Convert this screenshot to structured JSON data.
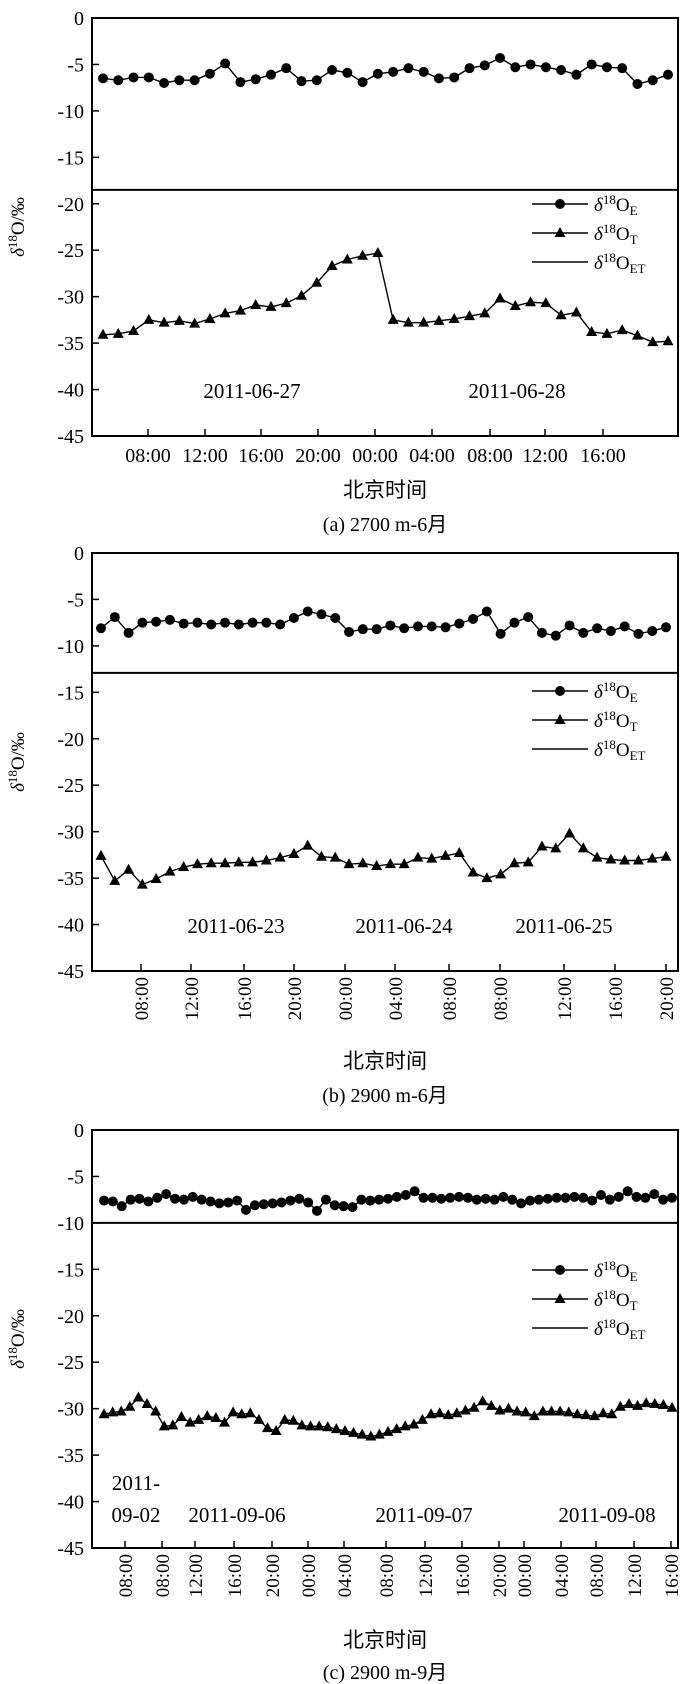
{
  "chart_data": [
    {
      "panel": "a",
      "type": "line",
      "caption": "(a) 2700 m-6月",
      "xlabel": "北京时间",
      "ylabel": "δ18O/‰",
      "ylim": [
        -45,
        0
      ],
      "y_ticks": [
        0,
        -5,
        -10,
        -15,
        -20,
        -25,
        -30,
        -35,
        -40,
        -45
      ],
      "x_ticks": [
        "08:00",
        "12:00",
        "16:00",
        "20:00",
        "00:00",
        "04:00",
        "08:00",
        "12:00",
        "16:00"
      ],
      "x_ticks_rotated": false,
      "date_labels": [
        "2011-06-27",
        "2011-06-28"
      ],
      "legend": {
        "position": "right-middle",
        "entries": [
          {
            "base": "δ",
            "sup": "18",
            "main": "O",
            "sub": "E"
          },
          {
            "base": "δ",
            "sup": "18",
            "main": "O",
            "sub": "T"
          },
          {
            "base": "δ",
            "sup": "18",
            "main": "O",
            "sub": "ET"
          }
        ]
      },
      "series": [
        {
          "marker": "circle",
          "values": [
            -6.5,
            -6.7,
            -6.4,
            -6.4,
            -7.0,
            -6.7,
            -6.7,
            -6.0,
            -4.9,
            -6.9,
            -6.6,
            -6.1,
            -5.4,
            -6.8,
            -6.7,
            -5.6,
            -5.9,
            -6.9,
            -6.0,
            -5.8,
            -5.4,
            -5.8,
            -6.5,
            -6.4,
            -5.4,
            -5.1,
            -4.3,
            -5.3,
            -5.0,
            -5.3,
            -5.6,
            -6.1,
            -5.0,
            -5.3,
            -5.4,
            -7.1,
            -6.7,
            -6.1
          ]
        },
        {
          "marker": "triangle",
          "values": [
            -34.1,
            -34.0,
            -33.7,
            -32.5,
            -32.8,
            -32.6,
            -32.9,
            -32.4,
            -31.8,
            -31.5,
            -30.9,
            -31.1,
            -30.7,
            -29.9,
            -28.5,
            -26.7,
            -26.0,
            -25.6,
            -25.3,
            -32.5,
            -32.8,
            -32.8,
            -32.6,
            -32.4,
            -32.1,
            -31.8,
            -30.2,
            -31.0,
            -30.6,
            -30.7,
            -32.0,
            -31.7,
            -33.8,
            -34.0,
            -33.6,
            -34.2,
            -34.9,
            -34.8
          ]
        },
        {
          "marker": "none",
          "values": [
            -18.5,
            -18.5
          ]
        }
      ]
    },
    {
      "panel": "b",
      "type": "line",
      "caption": "(b) 2900 m-6月",
      "xlabel": "北京时间",
      "ylabel": "δ18O/‰",
      "ylim": [
        -45,
        0
      ],
      "y_ticks": [
        0,
        -5,
        -10,
        -15,
        -20,
        -25,
        -30,
        -35,
        -40,
        -45
      ],
      "x_ticks": [
        "08:00",
        "12:00",
        "16:00",
        "20:00",
        "00:00",
        "04:00",
        "08:00",
        "08:00",
        "12:00",
        "16:00",
        "20:00"
      ],
      "x_ticks_rotated": true,
      "date_labels": [
        "2011-06-23",
        "2011-06-24",
        "2011-06-25"
      ],
      "legend": {
        "position": "right-middle",
        "entries": [
          {
            "base": "δ",
            "sup": "18",
            "main": "O",
            "sub": "E"
          },
          {
            "base": "δ",
            "sup": "18",
            "main": "O",
            "sub": "T"
          },
          {
            "base": "δ",
            "sup": "18",
            "main": "O",
            "sub": "ET"
          }
        ]
      },
      "series": [
        {
          "marker": "circle",
          "values": [
            -8.1,
            -6.9,
            -8.6,
            -7.5,
            -7.4,
            -7.2,
            -7.6,
            -7.5,
            -7.7,
            -7.5,
            -7.7,
            -7.5,
            -7.5,
            -7.7,
            -7.0,
            -6.3,
            -6.6,
            -7.0,
            -8.5,
            -8.2,
            -8.2,
            -7.8,
            -8.1,
            -7.9,
            -7.9,
            -8.0,
            -7.6,
            -7.1,
            -6.3,
            -8.7,
            -7.5,
            -6.9,
            -8.6,
            -8.9,
            -7.8,
            -8.6,
            -8.1,
            -8.4,
            -7.9,
            -8.7,
            -8.4,
            -8.0
          ]
        },
        {
          "marker": "triangle",
          "values": [
            -32.6,
            -35.3,
            -34.1,
            -35.7,
            -35.1,
            -34.3,
            -33.8,
            -33.5,
            -33.4,
            -33.4,
            -33.3,
            -33.3,
            -33.1,
            -32.8,
            -32.4,
            -31.5,
            -32.7,
            -32.8,
            -33.5,
            -33.4,
            -33.7,
            -33.5,
            -33.5,
            -32.8,
            -32.9,
            -32.6,
            -32.3,
            -34.4,
            -35.0,
            -34.6,
            -33.4,
            -33.3,
            -31.6,
            -31.8,
            -30.2,
            -31.8,
            -32.8,
            -33.0,
            -33.1,
            -33.1,
            -32.9,
            -32.7
          ]
        },
        {
          "marker": "none",
          "values": [
            -12.9,
            -12.9
          ]
        }
      ]
    },
    {
      "panel": "c",
      "type": "line",
      "caption": "(c) 2900 m-9月",
      "xlabel": "北京时间",
      "ylabel": "δ18O/‰",
      "ylim": [
        -45,
        0
      ],
      "y_ticks": [
        0,
        -5,
        -10,
        -15,
        -20,
        -25,
        -30,
        -35,
        -40,
        -45
      ],
      "x_ticks": [
        "08:00",
        "08:00",
        "12:00",
        "16:00",
        "20:00",
        "00:00",
        "04:00",
        "08:00",
        "12:00",
        "16:00",
        "20:00",
        "00:00",
        "04:00",
        "08:00",
        "12:00",
        "16:00"
      ],
      "x_ticks_rotated": true,
      "date_labels": [
        "2011-",
        "09-02",
        "2011-09-06",
        "2011-09-07",
        "2011-09-08"
      ],
      "legend": {
        "position": "right-middle",
        "entries": [
          {
            "base": "δ",
            "sup": "18",
            "main": "O",
            "sub": "E"
          },
          {
            "base": "δ",
            "sup": "18",
            "main": "O",
            "sub": "T"
          },
          {
            "base": "δ",
            "sup": "18",
            "main": "O",
            "sub": "ET"
          }
        ]
      },
      "series": [
        {
          "marker": "circle",
          "values": [
            -7.6,
            -7.7,
            -8.2,
            -7.5,
            -7.4,
            -7.7,
            -7.3,
            -6.9,
            -7.4,
            -7.5,
            -7.2,
            -7.5,
            -7.7,
            -7.9,
            -7.8,
            -7.6,
            -8.6,
            -8.1,
            -8.0,
            -7.9,
            -7.8,
            -7.6,
            -7.4,
            -7.8,
            -8.7,
            -7.5,
            -8.1,
            -8.2,
            -8.3,
            -7.5,
            -7.6,
            -7.5,
            -7.4,
            -7.2,
            -7.0,
            -6.6,
            -7.3,
            -7.3,
            -7.4,
            -7.3,
            -7.2,
            -7.3,
            -7.5,
            -7.4,
            -7.5,
            -7.2,
            -7.5,
            -7.9,
            -7.6,
            -7.5,
            -7.4,
            -7.3,
            -7.3,
            -7.2,
            -7.3,
            -7.6,
            -7.0,
            -7.5,
            -7.2,
            -6.6,
            -7.2,
            -7.3,
            -6.9,
            -7.5,
            -7.3
          ]
        },
        {
          "marker": "triangle",
          "values": [
            -30.6,
            -30.4,
            -30.3,
            -29.8,
            -28.8,
            -29.5,
            -30.3,
            -31.9,
            -31.8,
            -30.9,
            -31.5,
            -31.2,
            -30.8,
            -31.0,
            -31.5,
            -30.4,
            -30.6,
            -30.5,
            -31.2,
            -32.1,
            -32.4,
            -31.2,
            -31.3,
            -31.8,
            -31.9,
            -31.9,
            -32.0,
            -32.2,
            -32.4,
            -32.6,
            -32.8,
            -33.0,
            -32.8,
            -32.5,
            -32.2,
            -31.9,
            -31.7,
            -31.2,
            -30.6,
            -30.5,
            -30.7,
            -30.5,
            -30.2,
            -29.9,
            -29.2,
            -29.7,
            -30.2,
            -30.0,
            -30.3,
            -30.4,
            -30.8,
            -30.3,
            -30.3,
            -30.3,
            -30.4,
            -30.6,
            -30.7,
            -30.8,
            -30.5,
            -30.6,
            -29.8,
            -29.5,
            -29.7,
            -29.4,
            -29.5,
            -29.6,
            -29.9
          ]
        },
        {
          "marker": "none",
          "values": [
            -10.0,
            -10.0
          ]
        }
      ]
    }
  ]
}
